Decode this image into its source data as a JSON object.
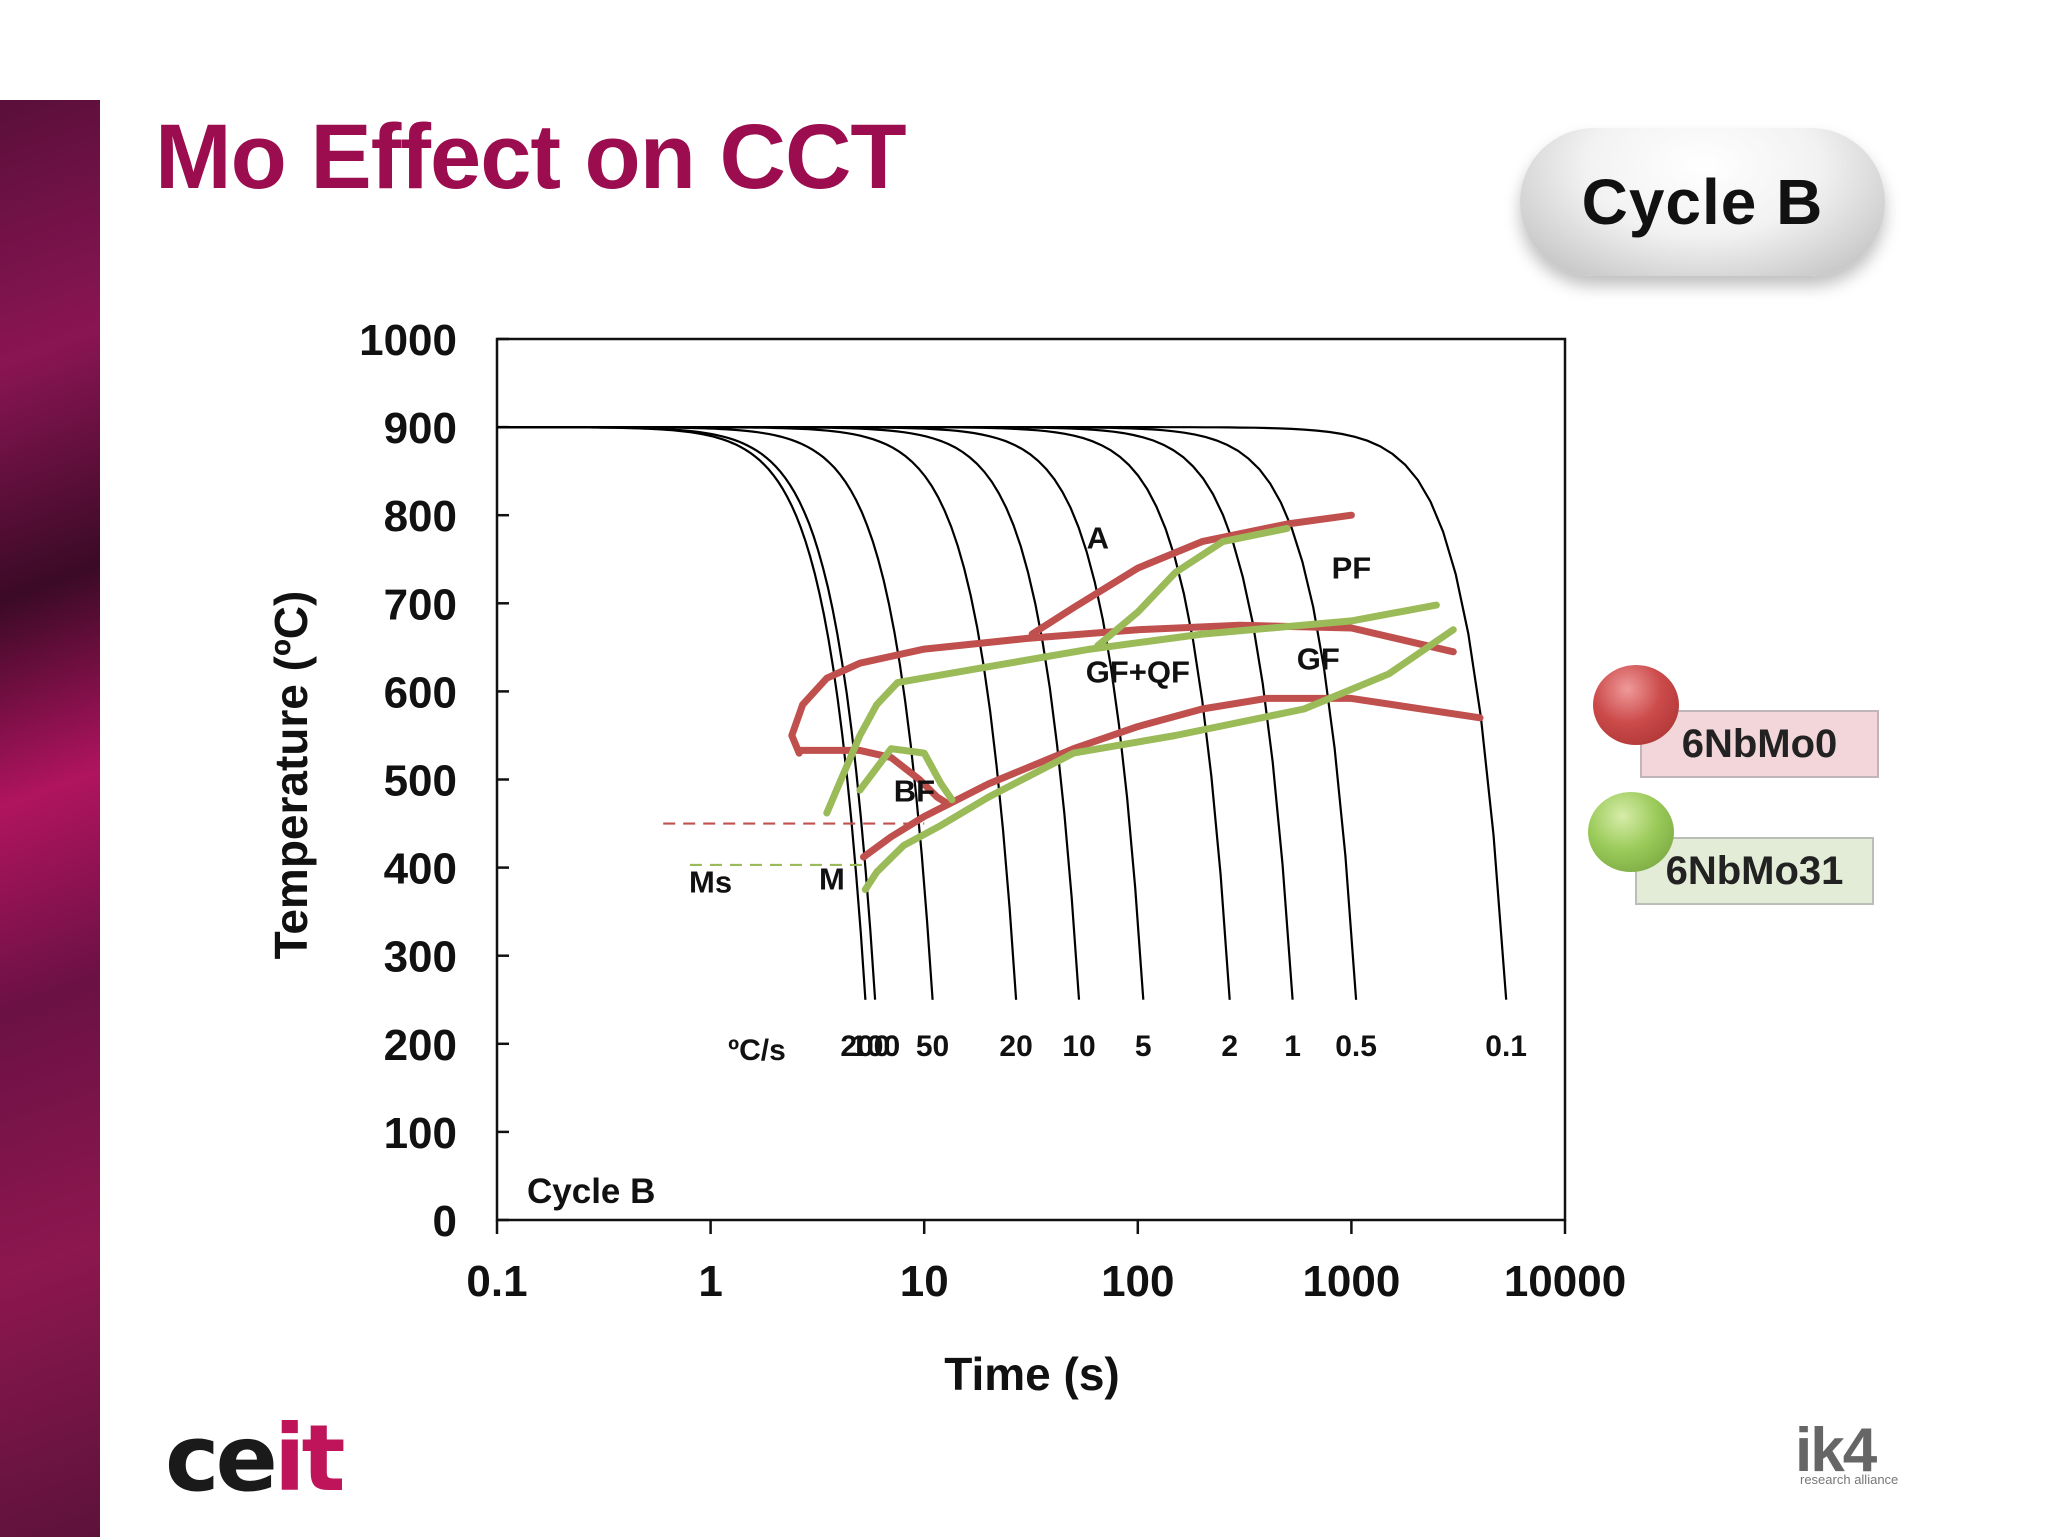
{
  "slide": {
    "title": "Mo Effect on CCT",
    "cycle_badge": "Cycle B"
  },
  "legend": [
    {
      "label": "6NbMo0",
      "color": "#c0504d"
    },
    {
      "label": "6NbMo31",
      "color": "#9bbb59"
    }
  ],
  "logos": {
    "left": {
      "text_main": "ce",
      "text_accent": "it"
    },
    "right": {
      "text": "ik4",
      "subtext": "research alliance"
    }
  },
  "chart_data": {
    "type": "line",
    "xlabel": "Time (s)",
    "ylabel": "Temperature (ºC)",
    "x_scale": "log",
    "xlim": [
      0.1,
      10000
    ],
    "ylim": [
      0,
      1000
    ],
    "x_ticks": [
      "0.1",
      "1",
      "10",
      "100",
      "1000",
      "10000"
    ],
    "y_ticks": [
      "0",
      "100",
      "200",
      "300",
      "400",
      "500",
      "600",
      "700",
      "800",
      "900",
      "1000"
    ],
    "grid": false,
    "inner_label": "Cycle B",
    "rate_unit_label": "ºC/s",
    "cooling_curves": [
      {
        "rate": "200",
        "end_time": 6.3
      },
      {
        "rate": "100",
        "end_time": 7.0
      },
      {
        "rate": "50",
        "end_time": 13.0
      },
      {
        "rate": "20",
        "end_time": 32.0
      },
      {
        "rate": "10",
        "end_time": 63.0
      },
      {
        "rate": "5",
        "end_time": 126.0
      },
      {
        "rate": "2",
        "end_time": 320.0
      },
      {
        "rate": "1",
        "end_time": 630.0
      },
      {
        "rate": "0.5",
        "end_time": 1250.0
      },
      {
        "rate": "0.1",
        "end_time": 6300.0
      }
    ],
    "series": [
      {
        "name": "6NbMo0",
        "color": "#c0504d",
        "lines": [
          [
            [
              2.6,
              530
            ],
            [
              2.4,
              550
            ],
            [
              2.7,
              585
            ],
            [
              3.5,
              615
            ],
            [
              5,
              632
            ],
            [
              10,
              648
            ],
            [
              30,
              660
            ],
            [
              100,
              670
            ],
            [
              300,
              675
            ],
            [
              1000,
              672
            ],
            [
              3000,
              645
            ]
          ],
          [
            [
              2.6,
              533
            ],
            [
              3.5,
              533
            ],
            [
              5,
              533
            ],
            [
              7,
              525
            ],
            [
              9.5,
              500
            ],
            [
              11.5,
              480
            ],
            [
              13,
              472
            ]
          ],
          [
            [
              32,
              665
            ],
            [
              50,
              695
            ],
            [
              100,
              740
            ],
            [
              200,
              770
            ],
            [
              500,
              790
            ],
            [
              1000,
              800
            ]
          ],
          [
            [
              5.2,
              412
            ],
            [
              7,
              435
            ],
            [
              10,
              458
            ],
            [
              20,
              495
            ],
            [
              50,
              535
            ],
            [
              100,
              560
            ],
            [
              200,
              580
            ],
            [
              400,
              592
            ],
            [
              1000,
              592
            ],
            [
              4000,
              570
            ]
          ]
        ]
      },
      {
        "name": "6NbMo31",
        "color": "#9bbb59",
        "lines": [
          [
            [
              3.5,
              462
            ],
            [
              4,
              495
            ],
            [
              5,
              550
            ],
            [
              6,
              585
            ],
            [
              7.5,
              610
            ],
            [
              20,
              628
            ],
            [
              60,
              648
            ],
            [
              200,
              665
            ],
            [
              1000,
              680
            ],
            [
              2500,
              698
            ]
          ],
          [
            [
              5.3,
              375
            ],
            [
              6,
              395
            ],
            [
              8,
              425
            ],
            [
              12,
              448
            ],
            [
              20,
              480
            ],
            [
              50,
              530
            ],
            [
              150,
              550
            ],
            [
              600,
              580
            ],
            [
              1500,
              620
            ],
            [
              3000,
              670
            ]
          ],
          [
            [
              5,
              488
            ],
            [
              7,
              535
            ],
            [
              10,
              530
            ],
            [
              12,
              495
            ],
            [
              13.5,
              477
            ]
          ],
          [
            [
              65,
              652
            ],
            [
              100,
              690
            ],
            [
              150,
              735
            ],
            [
              250,
              770
            ],
            [
              500,
              785
            ]
          ]
        ]
      }
    ],
    "transformation_labels": [
      {
        "text": "A",
        "x": 65,
        "y": 762
      },
      {
        "text": "PF",
        "x": 1000,
        "y": 728
      },
      {
        "text": "GF+QF",
        "x": 100,
        "y": 610
      },
      {
        "text": "GF",
        "x": 700,
        "y": 625
      },
      {
        "text": "BF",
        "x": 9,
        "y": 475
      },
      {
        "text": "Ms",
        "x": 1.0,
        "y": 372
      },
      {
        "text": "M",
        "x": 3.7,
        "y": 375
      }
    ],
    "ms_lines": [
      {
        "series": "6NbMo0",
        "y": 450,
        "x_from": 0.6,
        "x_to": 10
      },
      {
        "series": "6NbMo31",
        "y": 403,
        "x_from": 0.8,
        "x_to": 5.5
      }
    ]
  }
}
